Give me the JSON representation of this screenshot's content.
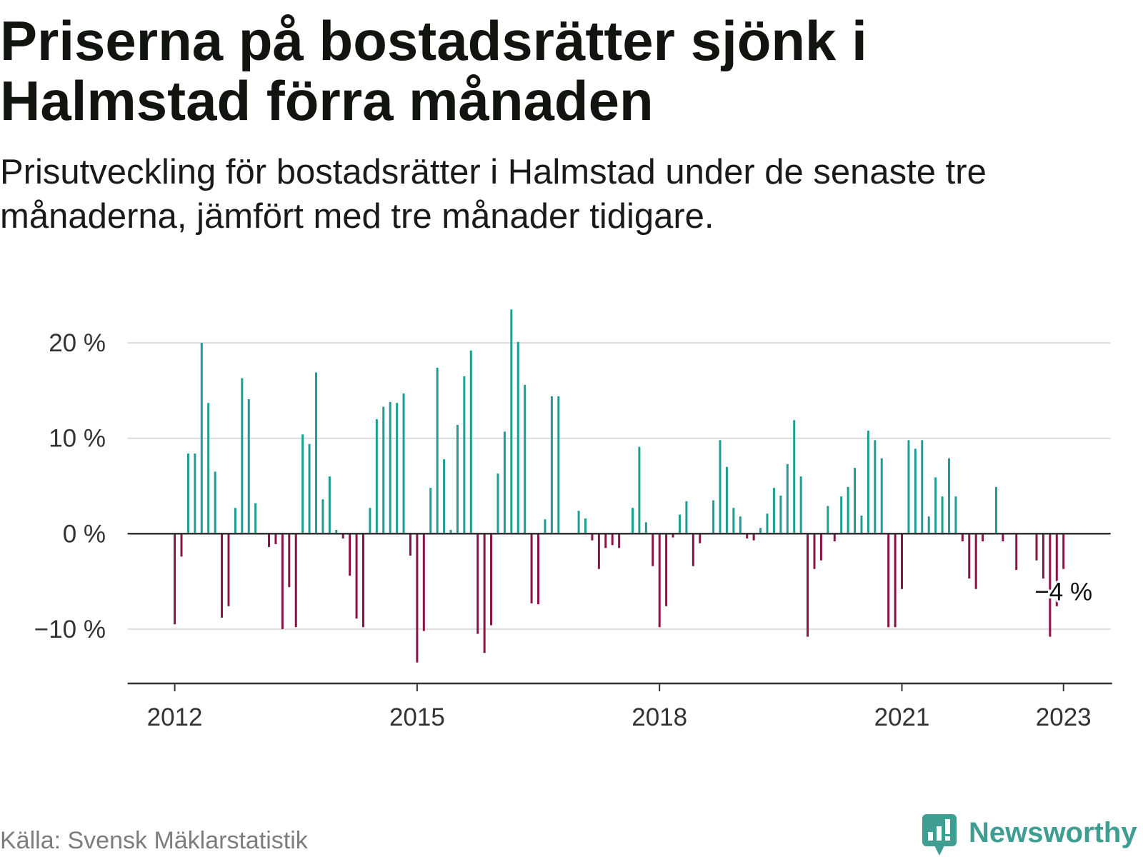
{
  "chart_data": {
    "type": "bar",
    "title": "Priserna på bostadsrätter sjönk i Halmstad förra månaden",
    "subtitle": "Prisutveckling för bostadsrätter i Halmstad under de senaste tre månaderna, jämfört med tre månader tidigare.",
    "x": [
      "2012-01",
      "2012-02",
      "2012-03",
      "2012-04",
      "2012-05",
      "2012-06",
      "2012-07",
      "2012-08",
      "2012-09",
      "2012-10",
      "2012-11",
      "2012-12",
      "2013-01",
      "2013-02",
      "2013-03",
      "2013-04",
      "2013-05",
      "2013-06",
      "2013-07",
      "2013-08",
      "2013-09",
      "2013-10",
      "2013-11",
      "2013-12",
      "2014-01",
      "2014-02",
      "2014-03",
      "2014-04",
      "2014-05",
      "2014-06",
      "2014-07",
      "2014-08",
      "2014-09",
      "2014-10",
      "2014-11",
      "2014-12",
      "2015-01",
      "2015-02",
      "2015-03",
      "2015-04",
      "2015-05",
      "2015-06",
      "2015-07",
      "2015-08",
      "2015-09",
      "2015-10",
      "2015-11",
      "2015-12",
      "2016-01",
      "2016-02",
      "2016-03",
      "2016-04",
      "2016-05",
      "2016-06",
      "2016-07",
      "2016-08",
      "2016-09",
      "2016-10",
      "2016-11",
      "2016-12",
      "2017-01",
      "2017-02",
      "2017-03",
      "2017-04",
      "2017-05",
      "2017-06",
      "2017-07",
      "2017-08",
      "2017-09",
      "2017-10",
      "2017-11",
      "2017-12",
      "2018-01",
      "2018-02",
      "2018-03",
      "2018-04",
      "2018-05",
      "2018-06",
      "2018-07",
      "2018-08",
      "2018-09",
      "2018-10",
      "2018-11",
      "2018-12",
      "2019-01",
      "2019-02",
      "2019-03",
      "2019-04",
      "2019-05",
      "2019-06",
      "2019-07",
      "2019-08",
      "2019-09",
      "2019-10",
      "2019-11",
      "2019-12",
      "2020-01",
      "2020-02",
      "2020-03",
      "2020-04",
      "2020-05",
      "2020-06",
      "2020-07",
      "2020-08",
      "2020-09",
      "2020-10",
      "2020-11",
      "2020-12",
      "2021-01",
      "2021-02",
      "2021-03",
      "2021-04",
      "2021-05",
      "2021-06",
      "2021-07",
      "2021-08",
      "2021-09",
      "2021-10",
      "2021-11",
      "2021-12",
      "2022-01",
      "2022-02",
      "2022-03",
      "2022-04",
      "2022-05",
      "2022-06",
      "2022-07",
      "2022-08",
      "2022-09",
      "2022-10",
      "2022-11",
      "2022-12",
      "2023-01"
    ],
    "values": [
      -9.5,
      -2.4,
      8.4,
      8.4,
      20.0,
      13.7,
      6.5,
      -8.8,
      -7.6,
      2.7,
      16.3,
      14.1,
      3.2,
      0,
      -1.4,
      -1.1,
      -10.0,
      -5.6,
      -9.8,
      10.4,
      9.4,
      16.9,
      3.6,
      6.0,
      0.4,
      -0.5,
      -4.4,
      -8.9,
      -9.8,
      2.7,
      12.0,
      13.3,
      13.8,
      13.7,
      14.7,
      -2.3,
      -13.5,
      -10.2,
      4.8,
      17.4,
      7.8,
      0.4,
      11.4,
      16.5,
      19.2,
      -10.5,
      -12.5,
      -9.6,
      6.3,
      10.7,
      23.5,
      20.1,
      15.6,
      -7.3,
      -7.4,
      1.5,
      14.4,
      14.4,
      0,
      0,
      2.4,
      1.6,
      -0.7,
      -3.7,
      -1.5,
      -1.2,
      -1.5,
      0,
      2.7,
      9.1,
      1.2,
      -3.4,
      -9.8,
      -7.6,
      -0.4,
      2.0,
      3.4,
      -3.4,
      -1.0,
      0,
      3.5,
      9.8,
      7.0,
      2.7,
      1.8,
      -0.5,
      -0.7,
      0.6,
      2.1,
      4.8,
      4.0,
      7.3,
      11.9,
      6.0,
      -10.8,
      -3.7,
      -2.8,
      2.9,
      -0.8,
      3.9,
      4.9,
      6.9,
      1.9,
      10.8,
      9.8,
      7.9,
      -9.8,
      -9.8,
      -5.8,
      9.8,
      8.9,
      9.8,
      1.8,
      5.9,
      3.9,
      7.9,
      3.9,
      -0.8,
      -4.7,
      -5.8,
      -0.8,
      0,
      4.9,
      -0.8,
      0,
      -3.8,
      0,
      0,
      -2.8,
      -4.7,
      -10.8,
      -7.6,
      -3.7
    ],
    "xlim": [
      "2011-06",
      "2023-08"
    ],
    "ylim": [
      -15.7,
      24.5
    ],
    "grid": true,
    "x_ticks": [
      {
        "x": "2012-01",
        "label": "2012"
      },
      {
        "x": "2015-01",
        "label": "2015"
      },
      {
        "x": "2018-01",
        "label": "2018"
      },
      {
        "x": "2021-01",
        "label": "2021"
      },
      {
        "x": "2023-01",
        "label": "2023"
      }
    ],
    "y_ticks": [
      {
        "value": 20,
        "label": "20 %"
      },
      {
        "value": 10,
        "label": "10 %"
      },
      {
        "value": 0,
        "label": "0 %"
      },
      {
        "value": -10,
        "label": "−10 %"
      }
    ],
    "annotation": {
      "x": "2023-01",
      "value": -3.7,
      "label": "−4 %"
    }
  },
  "source": "Källa: Svensk Mäklarstatistik",
  "logo": {
    "text": "Newsworthy",
    "icon": "newsworthy-logo-icon"
  },
  "colors": {
    "positive": "#1d9e94",
    "negative": "#8b1146",
    "grid": "#dcdcdc",
    "axis": "#333333",
    "tick_text": "#333333",
    "annotation_text": "#111111",
    "brand": "#3f9d92"
  }
}
